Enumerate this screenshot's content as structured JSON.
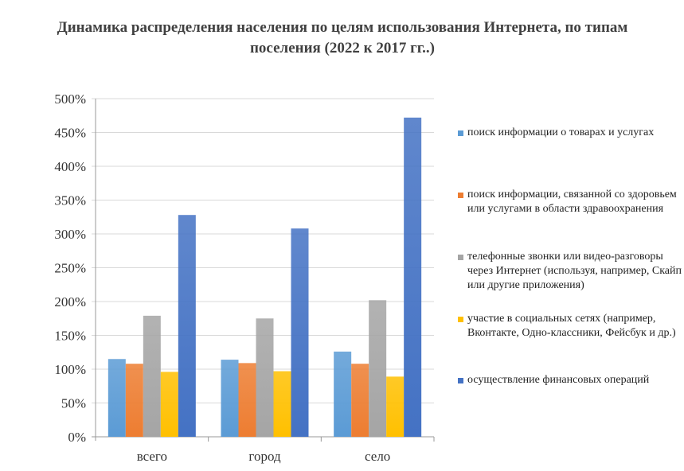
{
  "chart_data": {
    "type": "bar",
    "title": "Динамика распределения населения по целям использования Интернета, по типам поселения (2022 к 2017 гг..)",
    "categories": [
      "всего",
      "город",
      "село"
    ],
    "ylim": [
      0,
      500
    ],
    "yticks": [
      "0%",
      "50%",
      "100%",
      "150%",
      "200%",
      "250%",
      "300%",
      "350%",
      "400%",
      "450%",
      "500%"
    ],
    "grid": true,
    "legend_position": "right",
    "series": [
      {
        "name": "поиск информации о товарах и услугах",
        "color": "#5B9BD5",
        "values": [
          115,
          114,
          126
        ]
      },
      {
        "name": "поиск информации, связанной со здоровьем или услугами в области здравоохранения",
        "color": "#ED7D31",
        "values": [
          108,
          109,
          108
        ]
      },
      {
        "name": "телефонные звонки или видео-разговоры через Интернет (используя, например, Скайп или другие приложения)",
        "color": "#A5A5A5",
        "values": [
          179,
          175,
          202
        ]
      },
      {
        "name": "участие в социальных сетях (например, Вконтакте, Одно-классники, Фейсбук и др.)",
        "color": "#FFC000",
        "values": [
          96,
          97,
          89
        ]
      },
      {
        "name": "осуществление финансовых операций",
        "color": "#4472C4",
        "values": [
          328,
          308,
          472
        ]
      }
    ]
  }
}
